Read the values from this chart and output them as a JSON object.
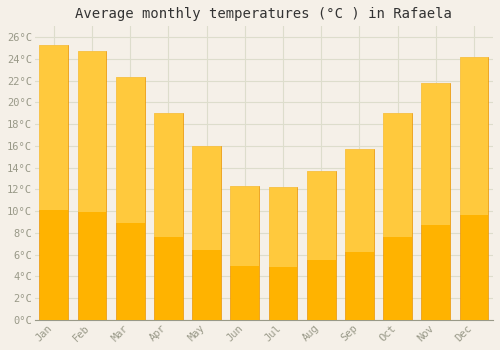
{
  "title": "Average monthly temperatures (°C ) in Rafaela",
  "months": [
    "Jan",
    "Feb",
    "Mar",
    "Apr",
    "May",
    "Jun",
    "Jul",
    "Aug",
    "Sep",
    "Oct",
    "Nov",
    "Dec"
  ],
  "values": [
    25.3,
    24.7,
    22.3,
    19.0,
    16.0,
    12.3,
    12.2,
    13.7,
    15.7,
    19.0,
    21.8,
    24.2
  ],
  "bar_color_bottom": "#FFB300",
  "bar_color_top": "#FFD966",
  "bar_edge_color": "#E8960A",
  "ylim": [
    0,
    27
  ],
  "yticks": [
    0,
    2,
    4,
    6,
    8,
    10,
    12,
    14,
    16,
    18,
    20,
    22,
    24,
    26
  ],
  "background_color": "#F5F0E8",
  "plot_bg_color": "#F5F0E8",
  "grid_color": "#DDDDCC",
  "title_fontsize": 10,
  "tick_fontsize": 7.5,
  "tick_color": "#999988",
  "font_family": "monospace"
}
